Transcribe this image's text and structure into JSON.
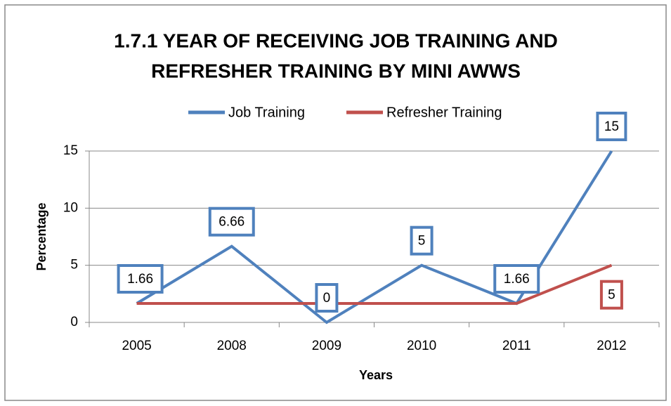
{
  "chart_data": {
    "type": "line",
    "title": [
      "1.7.1  YEAR OF RECEIVING JOB TRAINING  AND",
      "REFRESHER TRAINING BY MINI AWWS"
    ],
    "x_label": "Years",
    "y_label": "Percentage",
    "categories": [
      "2005",
      "2008",
      "2009",
      "2010",
      "2011",
      "2012"
    ],
    "series": [
      {
        "name": "Job Training",
        "color": "#4f81bd",
        "values": [
          1.66,
          6.66,
          0,
          5,
          1.66,
          15
        ]
      },
      {
        "name": "Refresher Training",
        "color": "#c0504d",
        "values": [
          1.66,
          1.66,
          1.66,
          1.66,
          1.66,
          5
        ],
        "value_labels": [
          null,
          null,
          null,
          null,
          null,
          "5"
        ]
      }
    ],
    "ylim": [
      0,
      15
    ],
    "yticks": [
      0,
      5,
      10,
      15
    ],
    "grid": true,
    "legend": "top"
  }
}
